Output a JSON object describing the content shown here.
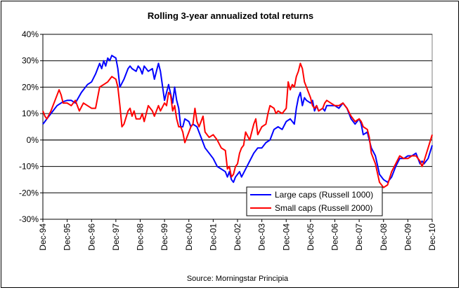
{
  "chart_data": {
    "type": "line",
    "title": "Rolling 3-year annualized total returns",
    "source": "Source: Morningstar Principia",
    "ylim": [
      -30,
      40
    ],
    "xlim": [
      1994.917,
      2010.917
    ],
    "y_ticks": [
      {
        "value": 40,
        "label": "40%"
      },
      {
        "value": 30,
        "label": "30%"
      },
      {
        "value": 20,
        "label": "20%"
      },
      {
        "value": 10,
        "label": "10%"
      },
      {
        "value": 0,
        "label": "0%"
      },
      {
        "value": -10,
        "label": "-10%"
      },
      {
        "value": -20,
        "label": "-20%"
      },
      {
        "value": -30,
        "label": "-30%"
      }
    ],
    "x_ticks": [
      {
        "value": 1994.917,
        "label": "Dec-94"
      },
      {
        "value": 1995.917,
        "label": "Dec-95"
      },
      {
        "value": 1996.917,
        "label": "Dec-96"
      },
      {
        "value": 1997.917,
        "label": "Dec-97"
      },
      {
        "value": 1998.917,
        "label": "Dec-98"
      },
      {
        "value": 1999.917,
        "label": "Dec-99"
      },
      {
        "value": 2000.917,
        "label": "Dec-00"
      },
      {
        "value": 2001.917,
        "label": "Dec-01"
      },
      {
        "value": 2002.917,
        "label": "Dec-02"
      },
      {
        "value": 2003.917,
        "label": "Dec-03"
      },
      {
        "value": 2004.917,
        "label": "Dec-04"
      },
      {
        "value": 2005.917,
        "label": "Dec-05"
      },
      {
        "value": 2006.917,
        "label": "Dec-06"
      },
      {
        "value": 2007.917,
        "label": "Dec-07"
      },
      {
        "value": 2008.917,
        "label": "Dec-08"
      },
      {
        "value": 2009.917,
        "label": "Dec-09"
      },
      {
        "value": 2010.917,
        "label": "Dec-10"
      }
    ],
    "grid": "horizontal",
    "legend_position": "bottom-right",
    "series": [
      {
        "name": "Large caps (Russell 1000)",
        "color": "#0000ff",
        "points": [
          [
            1994.917,
            6
          ],
          [
            1995.0,
            7
          ],
          [
            1995.083,
            8
          ],
          [
            1995.25,
            10
          ],
          [
            1995.5,
            13
          ],
          [
            1995.75,
            14.5
          ],
          [
            1995.917,
            15
          ],
          [
            1996.083,
            15
          ],
          [
            1996.25,
            14
          ],
          [
            1996.5,
            18
          ],
          [
            1996.75,
            21
          ],
          [
            1996.917,
            22
          ],
          [
            1997.083,
            25
          ],
          [
            1997.25,
            29
          ],
          [
            1997.333,
            27
          ],
          [
            1997.417,
            30
          ],
          [
            1997.5,
            28
          ],
          [
            1997.583,
            31
          ],
          [
            1997.667,
            30
          ],
          [
            1997.75,
            32
          ],
          [
            1997.917,
            31
          ],
          [
            1998.0,
            27
          ],
          [
            1998.083,
            20
          ],
          [
            1998.25,
            23
          ],
          [
            1998.417,
            27
          ],
          [
            1998.5,
            28
          ],
          [
            1998.583,
            27
          ],
          [
            1998.75,
            26
          ],
          [
            1998.833,
            28
          ],
          [
            1998.917,
            27
          ],
          [
            1999.0,
            25
          ],
          [
            1999.083,
            28
          ],
          [
            1999.25,
            26
          ],
          [
            1999.417,
            27
          ],
          [
            1999.5,
            23
          ],
          [
            1999.667,
            29
          ],
          [
            1999.75,
            26
          ],
          [
            1999.917,
            15
          ],
          [
            2000.0,
            18
          ],
          [
            2000.083,
            21
          ],
          [
            2000.25,
            14
          ],
          [
            2000.333,
            20
          ],
          [
            2000.417,
            15
          ],
          [
            2000.5,
            12
          ],
          [
            2000.583,
            5
          ],
          [
            2000.667,
            5
          ],
          [
            2000.75,
            8
          ],
          [
            2000.917,
            7
          ],
          [
            2001.0,
            5
          ],
          [
            2001.083,
            6
          ],
          [
            2001.25,
            5
          ],
          [
            2001.417,
            1
          ],
          [
            2001.583,
            -3
          ],
          [
            2001.75,
            -5
          ],
          [
            2001.917,
            -7
          ],
          [
            2002.083,
            -10
          ],
          [
            2002.25,
            -11
          ],
          [
            2002.417,
            -12
          ],
          [
            2002.5,
            -14
          ],
          [
            2002.583,
            -12
          ],
          [
            2002.667,
            -15
          ],
          [
            2002.75,
            -16
          ],
          [
            2002.833,
            -14
          ],
          [
            2002.917,
            -13
          ],
          [
            2003.0,
            -12
          ],
          [
            2003.083,
            -14
          ],
          [
            2003.25,
            -11
          ],
          [
            2003.417,
            -8
          ],
          [
            2003.583,
            -5
          ],
          [
            2003.75,
            -3
          ],
          [
            2003.917,
            -3
          ],
          [
            2004.083,
            -1
          ],
          [
            2004.25,
            0
          ],
          [
            2004.417,
            4
          ],
          [
            2004.583,
            5
          ],
          [
            2004.75,
            4
          ],
          [
            2004.917,
            7
          ],
          [
            2005.083,
            8
          ],
          [
            2005.25,
            6
          ],
          [
            2005.333,
            12
          ],
          [
            2005.417,
            16
          ],
          [
            2005.5,
            18
          ],
          [
            2005.583,
            13
          ],
          [
            2005.667,
            16
          ],
          [
            2005.75,
            15
          ],
          [
            2005.917,
            14
          ],
          [
            2006.0,
            15
          ],
          [
            2006.083,
            11
          ],
          [
            2006.167,
            13
          ],
          [
            2006.25,
            11
          ],
          [
            2006.417,
            12
          ],
          [
            2006.5,
            11
          ],
          [
            2006.583,
            13
          ],
          [
            2006.75,
            13
          ],
          [
            2006.917,
            13
          ],
          [
            2007.083,
            12
          ],
          [
            2007.25,
            14
          ],
          [
            2007.417,
            12
          ],
          [
            2007.583,
            8
          ],
          [
            2007.75,
            6
          ],
          [
            2007.917,
            8
          ],
          [
            2008.0,
            6
          ],
          [
            2008.083,
            2
          ],
          [
            2008.25,
            3
          ],
          [
            2008.333,
            0
          ],
          [
            2008.417,
            -3
          ],
          [
            2008.583,
            -6
          ],
          [
            2008.75,
            -13
          ],
          [
            2008.917,
            -15
          ],
          [
            2009.083,
            -16
          ],
          [
            2009.25,
            -14
          ],
          [
            2009.417,
            -10
          ],
          [
            2009.583,
            -7
          ],
          [
            2009.75,
            -7
          ],
          [
            2009.917,
            -6
          ],
          [
            2010.083,
            -6
          ],
          [
            2010.25,
            -5
          ],
          [
            2010.417,
            -9
          ],
          [
            2010.5,
            -8
          ],
          [
            2010.583,
            -9
          ],
          [
            2010.75,
            -7
          ],
          [
            2010.917,
            -2
          ]
        ]
      },
      {
        "name": "Small caps (Russell 2000)",
        "color": "#ff0000",
        "points": [
          [
            1994.917,
            11
          ],
          [
            1995.0,
            9
          ],
          [
            1995.083,
            8
          ],
          [
            1995.25,
            11
          ],
          [
            1995.417,
            15
          ],
          [
            1995.583,
            19
          ],
          [
            1995.667,
            17
          ],
          [
            1995.75,
            14
          ],
          [
            1995.917,
            14
          ],
          [
            1996.083,
            13
          ],
          [
            1996.25,
            15
          ],
          [
            1996.417,
            11
          ],
          [
            1996.583,
            14
          ],
          [
            1996.75,
            13
          ],
          [
            1996.917,
            12
          ],
          [
            1997.083,
            12
          ],
          [
            1997.25,
            20
          ],
          [
            1997.417,
            21
          ],
          [
            1997.583,
            22
          ],
          [
            1997.75,
            24
          ],
          [
            1997.917,
            23
          ],
          [
            1998.0,
            20
          ],
          [
            1998.083,
            13
          ],
          [
            1998.167,
            5
          ],
          [
            1998.25,
            6
          ],
          [
            1998.417,
            11
          ],
          [
            1998.5,
            12
          ],
          [
            1998.583,
            9
          ],
          [
            1998.667,
            11
          ],
          [
            1998.75,
            8
          ],
          [
            1998.917,
            8
          ],
          [
            1999.0,
            10
          ],
          [
            1999.083,
            7
          ],
          [
            1999.25,
            13
          ],
          [
            1999.417,
            11
          ],
          [
            1999.5,
            9
          ],
          [
            1999.667,
            13
          ],
          [
            1999.75,
            11
          ],
          [
            1999.917,
            14
          ],
          [
            2000.0,
            13
          ],
          [
            2000.083,
            18
          ],
          [
            2000.167,
            17
          ],
          [
            2000.25,
            11
          ],
          [
            2000.333,
            13
          ],
          [
            2000.417,
            8
          ],
          [
            2000.5,
            5
          ],
          [
            2000.583,
            5
          ],
          [
            2000.667,
            3
          ],
          [
            2000.75,
            -1
          ],
          [
            2000.917,
            3
          ],
          [
            2001.0,
            5
          ],
          [
            2001.083,
            6
          ],
          [
            2001.167,
            12
          ],
          [
            2001.25,
            7
          ],
          [
            2001.333,
            5
          ],
          [
            2001.417,
            7
          ],
          [
            2001.5,
            9
          ],
          [
            2001.583,
            3
          ],
          [
            2001.75,
            1
          ],
          [
            2001.917,
            2
          ],
          [
            2002.083,
            0
          ],
          [
            2002.25,
            -3
          ],
          [
            2002.417,
            -4
          ],
          [
            2002.5,
            -11
          ],
          [
            2002.583,
            -10
          ],
          [
            2002.667,
            -14
          ],
          [
            2002.75,
            -13
          ],
          [
            2002.833,
            -10
          ],
          [
            2002.917,
            -9
          ],
          [
            2003.0,
            -5
          ],
          [
            2003.083,
            -3
          ],
          [
            2003.167,
            -2
          ],
          [
            2003.25,
            3
          ],
          [
            2003.417,
            0
          ],
          [
            2003.583,
            6
          ],
          [
            2003.667,
            8
          ],
          [
            2003.75,
            2
          ],
          [
            2003.917,
            5
          ],
          [
            2004.083,
            6
          ],
          [
            2004.167,
            10
          ],
          [
            2004.25,
            13
          ],
          [
            2004.417,
            12
          ],
          [
            2004.5,
            10
          ],
          [
            2004.583,
            11
          ],
          [
            2004.75,
            10
          ],
          [
            2004.917,
            12
          ],
          [
            2005.0,
            22
          ],
          [
            2005.083,
            19
          ],
          [
            2005.167,
            21
          ],
          [
            2005.25,
            20
          ],
          [
            2005.333,
            24
          ],
          [
            2005.417,
            26
          ],
          [
            2005.5,
            29
          ],
          [
            2005.583,
            27
          ],
          [
            2005.667,
            22
          ],
          [
            2005.75,
            20
          ],
          [
            2005.917,
            16
          ],
          [
            2006.0,
            13
          ],
          [
            2006.083,
            12
          ],
          [
            2006.167,
            13
          ],
          [
            2006.25,
            11
          ],
          [
            2006.417,
            12
          ],
          [
            2006.5,
            14
          ],
          [
            2006.583,
            15
          ],
          [
            2006.75,
            14
          ],
          [
            2006.917,
            13
          ],
          [
            2007.083,
            13
          ],
          [
            2007.25,
            14
          ],
          [
            2007.417,
            12
          ],
          [
            2007.583,
            9
          ],
          [
            2007.75,
            7
          ],
          [
            2007.917,
            8
          ],
          [
            2008.0,
            7
          ],
          [
            2008.083,
            5
          ],
          [
            2008.25,
            4
          ],
          [
            2008.333,
            1
          ],
          [
            2008.417,
            -5
          ],
          [
            2008.583,
            -9
          ],
          [
            2008.75,
            -16
          ],
          [
            2008.917,
            -18
          ],
          [
            2009.083,
            -17
          ],
          [
            2009.25,
            -12
          ],
          [
            2009.417,
            -9
          ],
          [
            2009.583,
            -6
          ],
          [
            2009.75,
            -7
          ],
          [
            2009.917,
            -7
          ],
          [
            2010.083,
            -6
          ],
          [
            2010.25,
            -6
          ],
          [
            2010.417,
            -8
          ],
          [
            2010.5,
            -10
          ],
          [
            2010.583,
            -8
          ],
          [
            2010.75,
            -3
          ],
          [
            2010.917,
            2
          ]
        ]
      }
    ]
  }
}
